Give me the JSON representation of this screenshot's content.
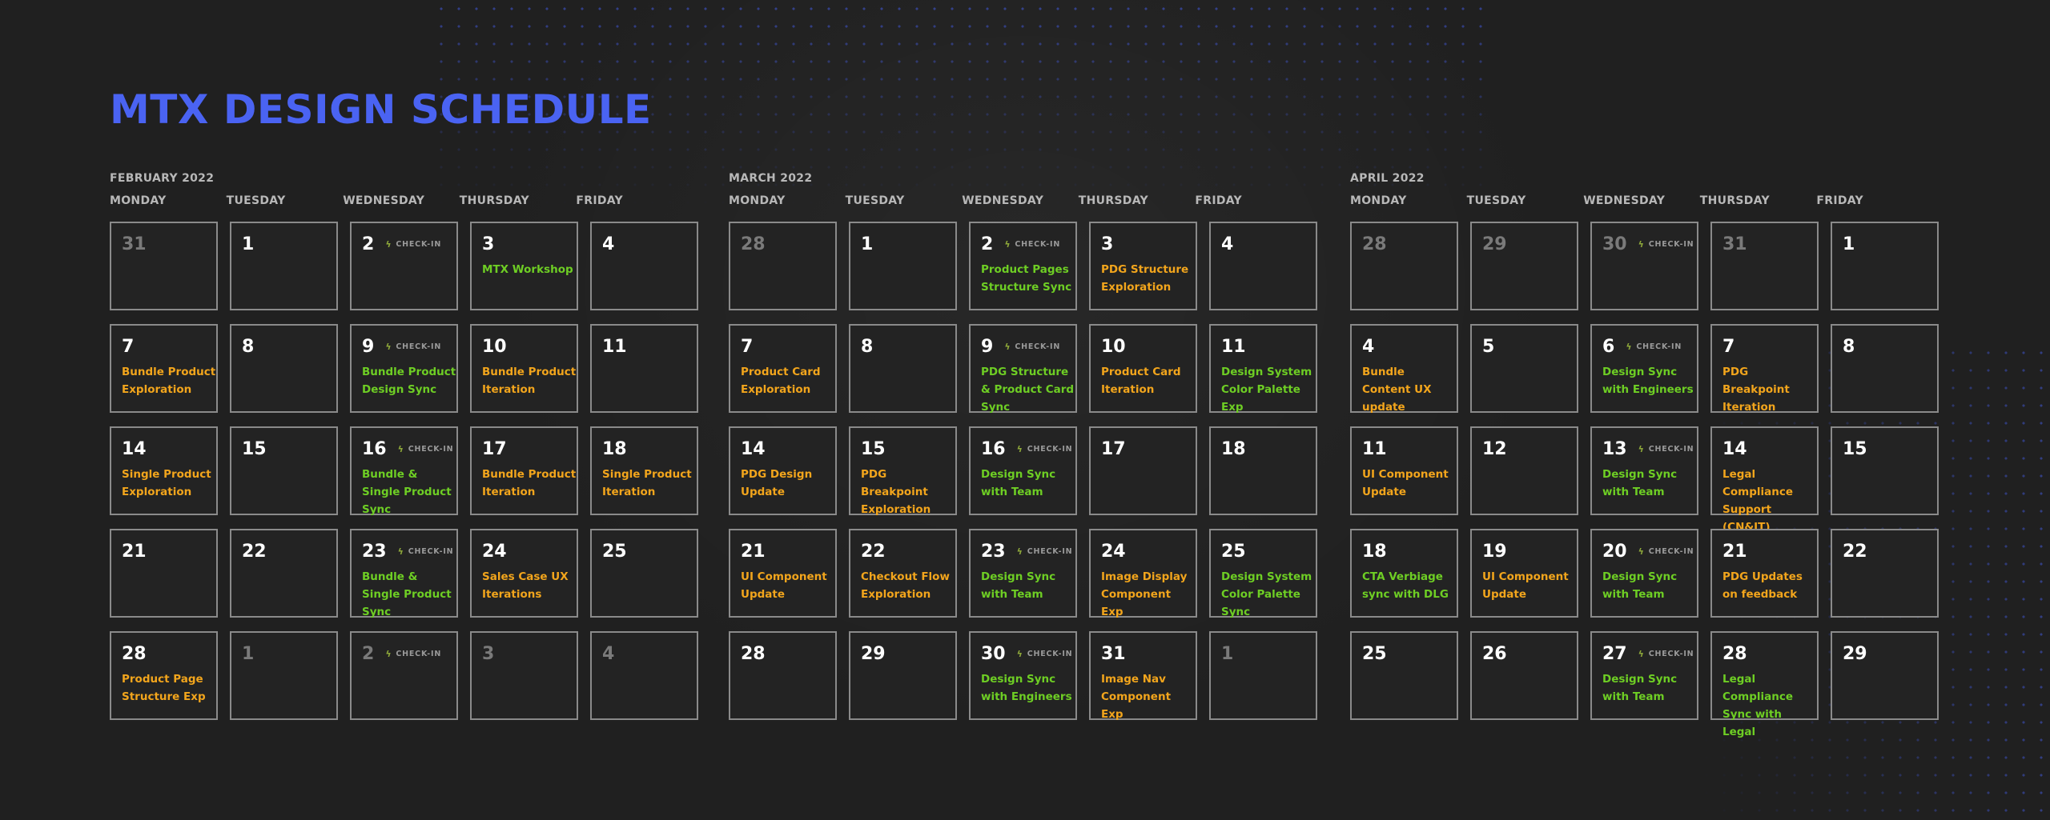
{
  "title": "MTX DESIGN SCHEDULE",
  "colors": {
    "accent": "#4a63f2",
    "orange": "#f2a51c",
    "green": "#6ece24",
    "background": "#202020"
  },
  "checkin_label": "CHECK-IN",
  "checkin_icon": "lightning-icon",
  "weekdays": [
    "MONDAY",
    "TUESDAY",
    "WEDNESDAY",
    "THURSDAY",
    "FRIDAY"
  ],
  "months": [
    {
      "label": "FEBRUARY 2022",
      "days": [
        {
          "n": "31",
          "muted": true
        },
        {
          "n": "1"
        },
        {
          "n": "2",
          "checkin": true
        },
        {
          "n": "3",
          "event": "MTX Workshop",
          "color": "green"
        },
        {
          "n": "4"
        },
        {
          "n": "7",
          "event": "Bundle Product Exploration",
          "color": "orange"
        },
        {
          "n": "8"
        },
        {
          "n": "9",
          "checkin": true,
          "event": "Bundle Product Design Sync",
          "color": "green"
        },
        {
          "n": "10",
          "event": "Bundle Product Iteration",
          "color": "orange"
        },
        {
          "n": "11"
        },
        {
          "n": "14",
          "event": "Single Product Exploration",
          "color": "orange"
        },
        {
          "n": "15"
        },
        {
          "n": "16",
          "checkin": true,
          "event": "Bundle & Single Product Sync",
          "color": "green"
        },
        {
          "n": "17",
          "event": "Bundle Product Iteration",
          "color": "orange"
        },
        {
          "n": "18",
          "event": "Single Product Iteration",
          "color": "orange"
        },
        {
          "n": "21"
        },
        {
          "n": "22"
        },
        {
          "n": "23",
          "checkin": true,
          "event": "Bundle & Single Product Sync",
          "color": "green"
        },
        {
          "n": "24",
          "event": "Sales Case UX Iterations",
          "color": "orange"
        },
        {
          "n": "25"
        },
        {
          "n": "28",
          "event": "Product Page Structure Exp",
          "color": "orange"
        },
        {
          "n": "1",
          "muted": true
        },
        {
          "n": "2",
          "muted": true,
          "checkin": true
        },
        {
          "n": "3",
          "muted": true
        },
        {
          "n": "4",
          "muted": true
        }
      ]
    },
    {
      "label": "MARCH 2022",
      "days": [
        {
          "n": "28",
          "muted": true
        },
        {
          "n": "1"
        },
        {
          "n": "2",
          "checkin": true,
          "event": "Product Pages Structure Sync",
          "color": "green"
        },
        {
          "n": "3",
          "event": "PDG Structure Exploration",
          "color": "orange"
        },
        {
          "n": "4"
        },
        {
          "n": "7",
          "event": "Product Card Exploration",
          "color": "orange"
        },
        {
          "n": "8"
        },
        {
          "n": "9",
          "checkin": true,
          "event": "PDG Structure & Product Card Sync",
          "color": "green"
        },
        {
          "n": "10",
          "event": "Product Card Iteration",
          "color": "orange"
        },
        {
          "n": "11",
          "event": "Design System Color Palette Exp",
          "color": "green"
        },
        {
          "n": "14",
          "event": "PDG Design Update",
          "color": "orange"
        },
        {
          "n": "15",
          "event": "PDG Breakpoint Exploration",
          "color": "orange"
        },
        {
          "n": "16",
          "checkin": true,
          "event": "Design Sync with Team",
          "color": "green"
        },
        {
          "n": "17"
        },
        {
          "n": "18"
        },
        {
          "n": "21",
          "event": "UI Component Update",
          "color": "orange"
        },
        {
          "n": "22",
          "event": "Checkout Flow Exploration",
          "color": "orange"
        },
        {
          "n": "23",
          "checkin": true,
          "event": "Design Sync with Team",
          "color": "green"
        },
        {
          "n": "24",
          "event": "Image Display Component Exp",
          "color": "orange"
        },
        {
          "n": "25",
          "event": "Design System Color Palette Sync",
          "color": "green"
        },
        {
          "n": "28"
        },
        {
          "n": "29"
        },
        {
          "n": "30",
          "checkin": true,
          "event": "Design Sync with Engineers",
          "color": "green"
        },
        {
          "n": "31",
          "event": "Image Nav Component Exp",
          "color": "orange"
        },
        {
          "n": "1",
          "muted": true
        }
      ]
    },
    {
      "label": "APRIL 2022",
      "days": [
        {
          "n": "28",
          "muted": true
        },
        {
          "n": "29",
          "muted": true
        },
        {
          "n": "30",
          "muted": true,
          "checkin": true
        },
        {
          "n": "31",
          "muted": true
        },
        {
          "n": "1"
        },
        {
          "n": "4",
          "event": "Bundle Content UX update",
          "color": "orange"
        },
        {
          "n": "5"
        },
        {
          "n": "6",
          "checkin": true,
          "event": "Design Sync with Engineers",
          "color": "green"
        },
        {
          "n": "7",
          "event": "PDG Breakpoint Iteration",
          "color": "orange"
        },
        {
          "n": "8"
        },
        {
          "n": "11",
          "event": "UI Component Update",
          "color": "orange"
        },
        {
          "n": "12"
        },
        {
          "n": "13",
          "checkin": true,
          "event": "Design Sync with Team",
          "color": "green"
        },
        {
          "n": "14",
          "event": "Legal Compliance Support (CN&IT)",
          "color": "orange"
        },
        {
          "n": "15"
        },
        {
          "n": "18",
          "event": "CTA Verbiage sync with DLG",
          "color": "green"
        },
        {
          "n": "19",
          "event": "UI Component Update",
          "color": "orange"
        },
        {
          "n": "20",
          "checkin": true,
          "event": "Design Sync with Team",
          "color": "green"
        },
        {
          "n": "21",
          "event": "PDG Updates on feedback",
          "color": "orange"
        },
        {
          "n": "22"
        },
        {
          "n": "25"
        },
        {
          "n": "26"
        },
        {
          "n": "27",
          "checkin": true,
          "event": "Design Sync with Team",
          "color": "green"
        },
        {
          "n": "28",
          "event": "Legal Compliance Sync with Legal",
          "color": "green"
        },
        {
          "n": "29"
        }
      ]
    }
  ]
}
